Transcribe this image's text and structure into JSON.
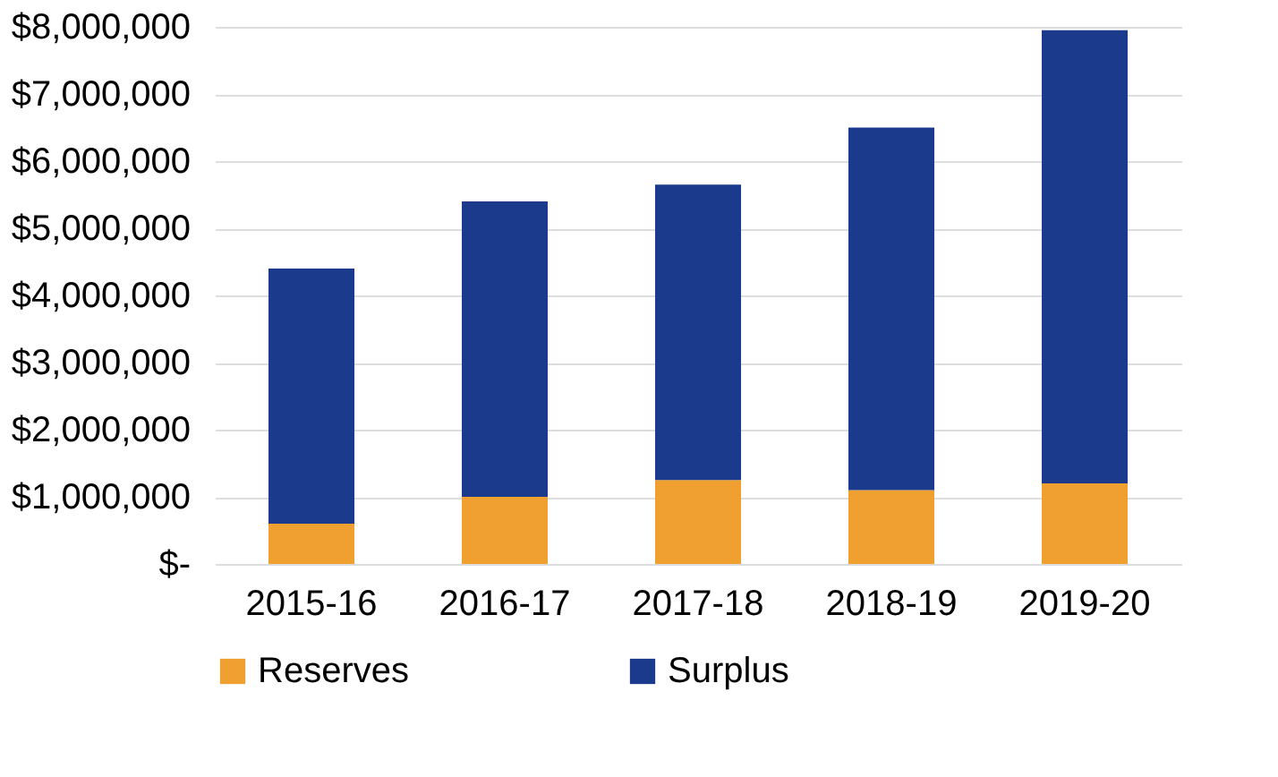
{
  "chart_data": {
    "type": "bar",
    "stacked": true,
    "categories": [
      "2015-16",
      "2016-17",
      "2017-18",
      "2018-19",
      "2019-20"
    ],
    "series": [
      {
        "name": "Reserves",
        "color": "#f0a030",
        "values": [
          600000,
          1000000,
          1250000,
          1100000,
          1200000
        ]
      },
      {
        "name": "Surplus",
        "color": "#1c3a8c",
        "values": [
          3800000,
          4400000,
          4400000,
          5400000,
          6750000
        ]
      }
    ],
    "ylim": [
      0,
      8000000
    ],
    "yticks": [
      {
        "value": 0,
        "label": "$-"
      },
      {
        "value": 1000000,
        "label": "$1,000,000"
      },
      {
        "value": 2000000,
        "label": "$2,000,000"
      },
      {
        "value": 3000000,
        "label": "$3,000,000"
      },
      {
        "value": 4000000,
        "label": "$4,000,000"
      },
      {
        "value": 5000000,
        "label": "$5,000,000"
      },
      {
        "value": 6000000,
        "label": "$6,000,000"
      },
      {
        "value": 7000000,
        "label": "$7,000,000"
      },
      {
        "value": 8000000,
        "label": "$8,000,000"
      }
    ],
    "grid": "y",
    "legend": "bottom"
  }
}
